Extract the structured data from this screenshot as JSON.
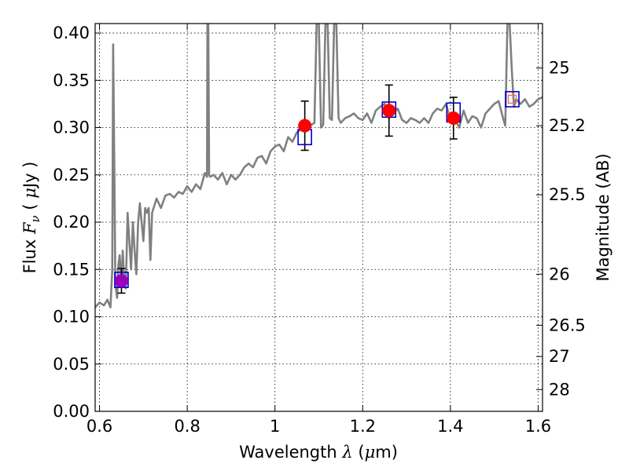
{
  "chart_data": {
    "type": "scatter",
    "title": "",
    "xlabel": "Wavelength",
    "xlabel_symbol": "λ",
    "xlabel_unit_prefix": "(",
    "xlabel_unit_mu": "μ",
    "xlabel_unit": "m)",
    "ylabel": "Flux",
    "ylabel_symbol": "F",
    "ylabel_sub": "ν",
    "ylabel_unit_open": "(",
    "ylabel_unit_mu": "μ",
    "ylabel_unit": "Jy",
    "ylabel_unit_close": ")",
    "y2label": "Magnitude (AB)",
    "xlim": [
      0.59,
      1.61
    ],
    "ylim": [
      0.0,
      0.41
    ],
    "grid": true,
    "x_ticks": [
      {
        "v": 0.6,
        "label": "0.6"
      },
      {
        "v": 0.8,
        "label": "0.8"
      },
      {
        "v": 1.0,
        "label": "1"
      },
      {
        "v": 1.2,
        "label": "1.2"
      },
      {
        "v": 1.4,
        "label": "1.4"
      },
      {
        "v": 1.6,
        "label": "1.6"
      }
    ],
    "y_ticks": [
      {
        "v": 0.0,
        "label": "0.00"
      },
      {
        "v": 0.05,
        "label": "0.05"
      },
      {
        "v": 0.1,
        "label": "0.10"
      },
      {
        "v": 0.15,
        "label": "0.15"
      },
      {
        "v": 0.2,
        "label": "0.20"
      },
      {
        "v": 0.25,
        "label": "0.25"
      },
      {
        "v": 0.3,
        "label": "0.30"
      },
      {
        "v": 0.35,
        "label": "0.35"
      },
      {
        "v": 0.4,
        "label": "0.40"
      }
    ],
    "y2_ticks": [
      {
        "flux": 0.363,
        "label": "25"
      },
      {
        "flux": 0.302,
        "label": "25.2"
      },
      {
        "flux": 0.229,
        "label": "25.5"
      },
      {
        "flux": 0.145,
        "label": "26"
      },
      {
        "flux": 0.091,
        "label": "26.5"
      },
      {
        "flux": 0.058,
        "label": "27"
      },
      {
        "flux": 0.023,
        "label": "28"
      }
    ],
    "series": [
      {
        "kind": "line",
        "color": "#808080",
        "x": [
          0.59,
          0.6,
          0.61,
          0.618,
          0.625,
          0.629,
          0.631,
          0.634,
          0.636,
          0.64,
          0.643,
          0.646,
          0.65,
          0.653,
          0.656,
          0.66,
          0.664,
          0.668,
          0.672,
          0.676,
          0.68,
          0.684,
          0.688,
          0.692,
          0.696,
          0.7,
          0.704,
          0.708,
          0.712,
          0.716,
          0.72,
          0.73,
          0.74,
          0.75,
          0.76,
          0.77,
          0.78,
          0.79,
          0.8,
          0.81,
          0.82,
          0.83,
          0.84,
          0.845,
          0.846,
          0.848,
          0.85,
          0.852,
          0.86,
          0.87,
          0.88,
          0.89,
          0.9,
          0.91,
          0.92,
          0.93,
          0.94,
          0.95,
          0.96,
          0.97,
          0.98,
          0.99,
          1.0,
          1.01,
          1.02,
          1.03,
          1.04,
          1.05,
          1.06,
          1.07,
          1.08,
          1.09,
          1.095,
          1.1,
          1.105,
          1.11,
          1.115,
          1.12,
          1.125,
          1.13,
          1.135,
          1.14,
          1.145,
          1.15,
          1.16,
          1.17,
          1.18,
          1.19,
          1.2,
          1.21,
          1.22,
          1.23,
          1.24,
          1.25,
          1.26,
          1.27,
          1.28,
          1.29,
          1.3,
          1.31,
          1.32,
          1.33,
          1.34,
          1.35,
          1.36,
          1.37,
          1.38,
          1.39,
          1.4,
          1.41,
          1.42,
          1.43,
          1.44,
          1.45,
          1.46,
          1.47,
          1.48,
          1.49,
          1.5,
          1.51,
          1.52,
          1.525,
          1.53,
          1.535,
          1.54,
          1.545,
          1.55,
          1.56,
          1.57,
          1.58,
          1.59,
          1.6,
          1.61
        ],
        "y": [
          0.11,
          0.115,
          0.112,
          0.118,
          0.11,
          0.15,
          0.388,
          0.25,
          0.135,
          0.12,
          0.155,
          0.165,
          0.135,
          0.17,
          0.14,
          0.13,
          0.21,
          0.18,
          0.15,
          0.2,
          0.17,
          0.145,
          0.2,
          0.22,
          0.2,
          0.18,
          0.215,
          0.21,
          0.215,
          0.16,
          0.21,
          0.225,
          0.215,
          0.228,
          0.23,
          0.226,
          0.232,
          0.23,
          0.238,
          0.232,
          0.24,
          0.235,
          0.252,
          0.248,
          0.41,
          0.41,
          0.25,
          0.248,
          0.25,
          0.245,
          0.252,
          0.24,
          0.25,
          0.245,
          0.25,
          0.258,
          0.262,
          0.258,
          0.268,
          0.27,
          0.262,
          0.275,
          0.28,
          0.282,
          0.275,
          0.29,
          0.285,
          0.295,
          0.298,
          0.3,
          0.302,
          0.305,
          0.41,
          0.41,
          0.3,
          0.303,
          0.41,
          0.41,
          0.31,
          0.308,
          0.41,
          0.41,
          0.31,
          0.305,
          0.31,
          0.312,
          0.315,
          0.31,
          0.308,
          0.315,
          0.305,
          0.318,
          0.322,
          0.325,
          0.31,
          0.315,
          0.32,
          0.308,
          0.305,
          0.31,
          0.308,
          0.305,
          0.31,
          0.305,
          0.315,
          0.32,
          0.318,
          0.325,
          0.308,
          0.31,
          0.3,
          0.318,
          0.305,
          0.312,
          0.31,
          0.3,
          0.315,
          0.32,
          0.325,
          0.328,
          0.31,
          0.302,
          0.41,
          0.41,
          0.36,
          0.322,
          0.33,
          0.325,
          0.33,
          0.322,
          0.325,
          0.33,
          0.332
        ]
      },
      {
        "kind": "errorbar-points",
        "x": [
          0.65,
          1.068,
          1.26,
          1.407
        ],
        "y": [
          0.138,
          0.302,
          0.318,
          0.31
        ],
        "yerr_low": [
          0.013,
          0.026,
          0.027,
          0.022
        ],
        "yerr_high": [
          0.013,
          0.026,
          0.027,
          0.022
        ],
        "colors": [
          "#9900bb",
          "#ff0000",
          "#ff0000",
          "#ff0000"
        ]
      },
      {
        "kind": "model-squares",
        "x": [
          0.65,
          1.068,
          1.26,
          1.407,
          1.541
        ],
        "y": [
          0.139,
          0.29,
          0.319,
          0.316,
          0.33
        ],
        "heights": [
          0.016,
          0.016,
          0.016,
          0.02,
          0.016
        ],
        "color": "#0000cc"
      },
      {
        "kind": "small-square",
        "x": [
          1.541
        ],
        "y": [
          0.33
        ],
        "color": "#ff6666"
      }
    ]
  }
}
